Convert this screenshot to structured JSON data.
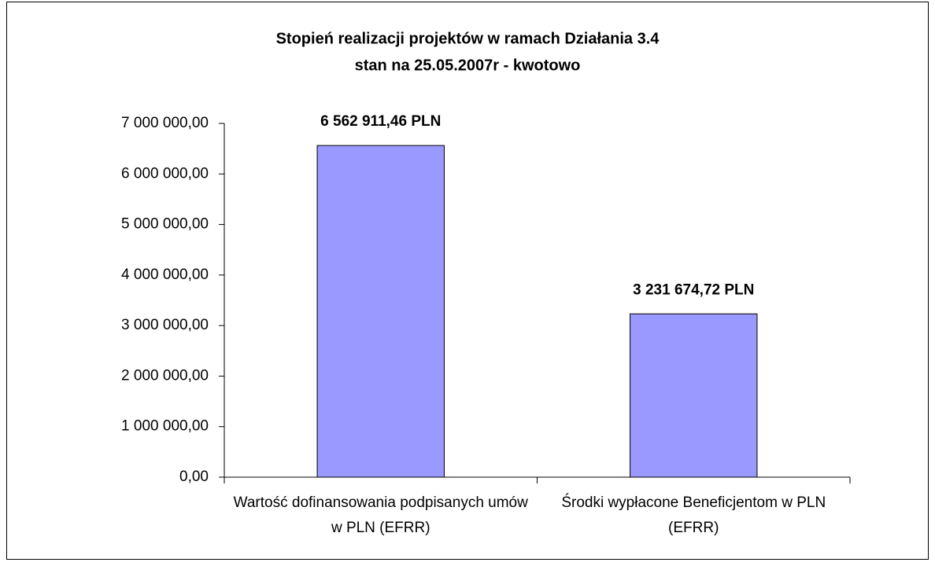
{
  "chart_data": {
    "type": "bar",
    "title": "Stopień realizacji projektów w ramach Działania 3.4",
    "subtitle": "stan  na 25.05.2007r - kwotowo",
    "categories": [
      "Wartość dofinansowania podpisanych umów w PLN (EFRR)",
      "Środki wypłacone Beneficjentom w PLN (EFRR)"
    ],
    "values": [
      6562911.46,
      3231674.72
    ],
    "value_labels": [
      "6 562 911,46 PLN",
      "3 231 674,72 PLN"
    ],
    "color": "#9999ff",
    "ylim": [
      0,
      7000000
    ],
    "yticks": [
      {
        "value": 0,
        "label": "0,00"
      },
      {
        "value": 1000000,
        "label": "1 000 000,00"
      },
      {
        "value": 2000000,
        "label": "2 000 000,00"
      },
      {
        "value": 3000000,
        "label": "3 000 000,00"
      },
      {
        "value": 4000000,
        "label": "4 000 000,00"
      },
      {
        "value": 5000000,
        "label": "5 000 000,00"
      },
      {
        "value": 6000000,
        "label": "6 000 000,00"
      },
      {
        "value": 7000000,
        "label": "7 000 000,00"
      }
    ],
    "grid": false
  }
}
